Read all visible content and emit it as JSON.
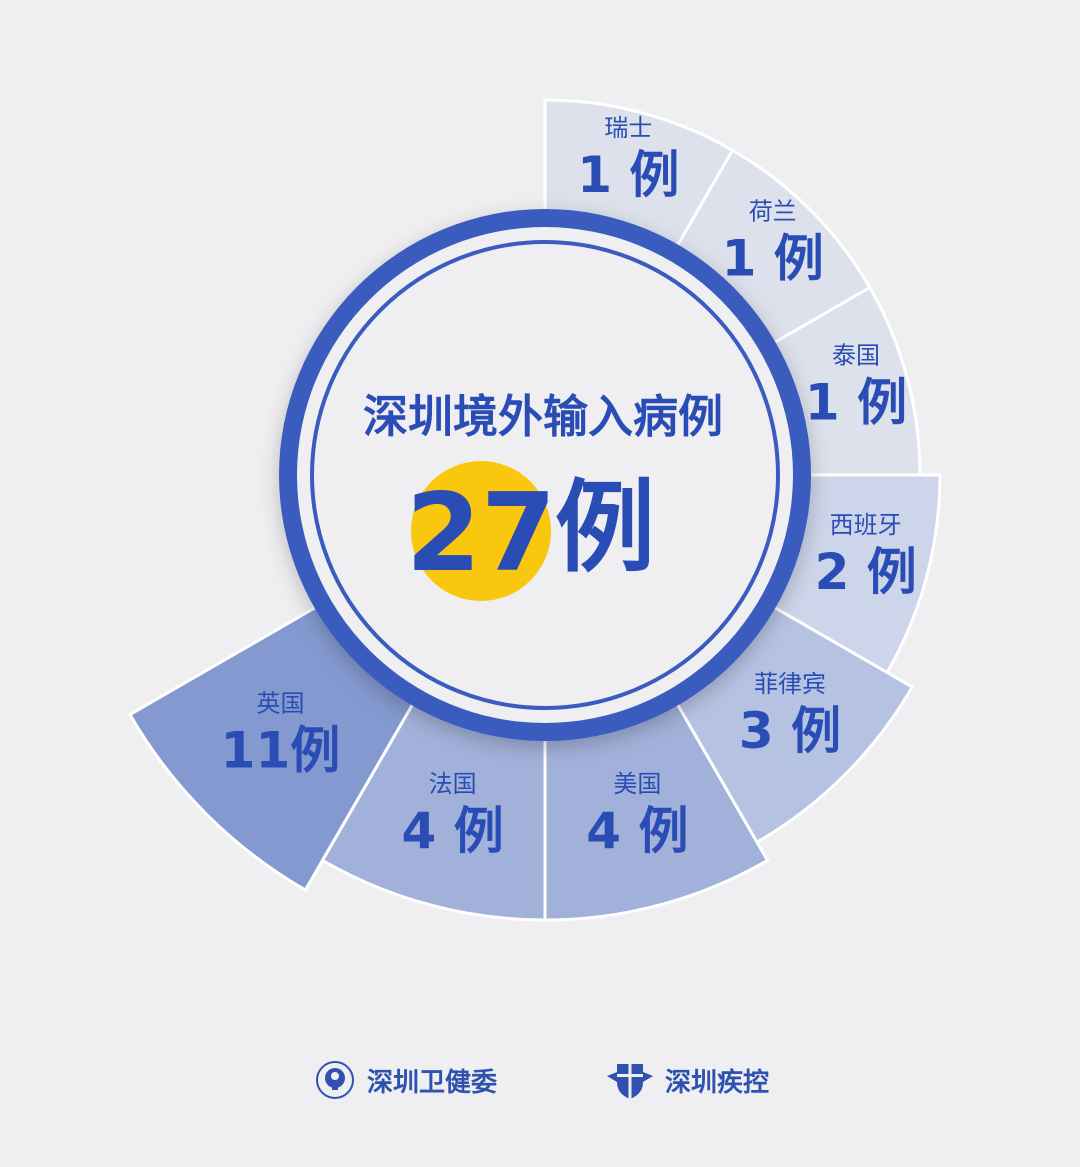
{
  "chart_data": {
    "type": "pie",
    "variant": "radial-sector (nightingale-style, equal angles, radius grows with value)",
    "title": "深圳境外输入病例",
    "total": {
      "value": "27",
      "unit": "例"
    },
    "unit": "例",
    "categories": [
      "瑞士",
      "荷兰",
      "泰国",
      "西班牙",
      "菲律宾",
      "美国",
      "法国",
      "英国"
    ],
    "values": [
      1,
      1,
      1,
      2,
      3,
      4,
      4,
      11
    ],
    "colors": [
      "#dde1ec",
      "#dde1ec",
      "#dde1ec",
      "#cdd5ea",
      "#b6c2e2",
      "#a2b1da",
      "#a2b1da",
      "#8499cf"
    ],
    "text_color": "#2a4db5",
    "ring_color": "#3a5bbf",
    "highlight_color": "#f9c80e"
  },
  "footer": {
    "org1": "深圳卫健委",
    "org1_icon": "health-commission-emblem-icon",
    "org2": "深圳疾控",
    "org2_icon": "cdc-shield-icon"
  }
}
